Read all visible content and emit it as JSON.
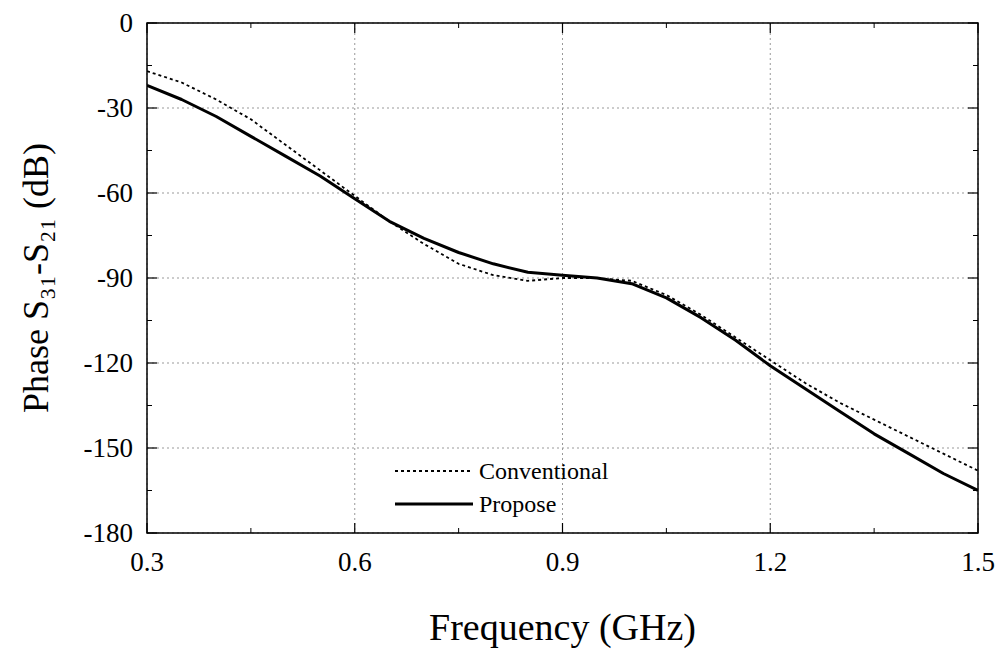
{
  "chart_data": {
    "type": "line",
    "x_label": "Frequency (GHz)",
    "y_label": "Phase S₃₁-S₂₁ (dB)",
    "x": [
      0.3,
      0.35,
      0.4,
      0.45,
      0.5,
      0.55,
      0.6,
      0.65,
      0.7,
      0.75,
      0.8,
      0.85,
      0.9,
      0.95,
      1.0,
      1.05,
      1.1,
      1.15,
      1.2,
      1.25,
      1.3,
      1.35,
      1.4,
      1.45,
      1.5
    ],
    "series": [
      {
        "name": "Conventional",
        "color": "#000000",
        "line_style": "dotted",
        "values": [
          -17,
          -21,
          -27,
          -34,
          -43,
          -52,
          -61,
          -70,
          -78,
          -85,
          -89,
          -91,
          -90,
          -90,
          -91,
          -96,
          -103,
          -111,
          -119,
          -127,
          -134,
          -140,
          -146,
          -152,
          -158
        ]
      },
      {
        "name": "Propose",
        "color": "#000000",
        "line_style": "solid",
        "values": [
          -22,
          -27,
          -33,
          -40,
          -47,
          -54,
          -62,
          -70,
          -76,
          -81,
          -85,
          -88,
          -89,
          -90,
          -92,
          -97,
          -104,
          -112,
          -121,
          -129,
          -137,
          -145,
          -152,
          -159,
          -165
        ]
      }
    ],
    "xlim": [
      0.3,
      1.5
    ],
    "xticks": [
      0.3,
      0.6,
      0.9,
      1.2,
      1.5
    ],
    "ylim": [
      -180,
      0
    ],
    "yticks": [
      -180,
      -150,
      -120,
      -90,
      -60,
      -30,
      0
    ],
    "grid": true,
    "legend": "bottom"
  }
}
